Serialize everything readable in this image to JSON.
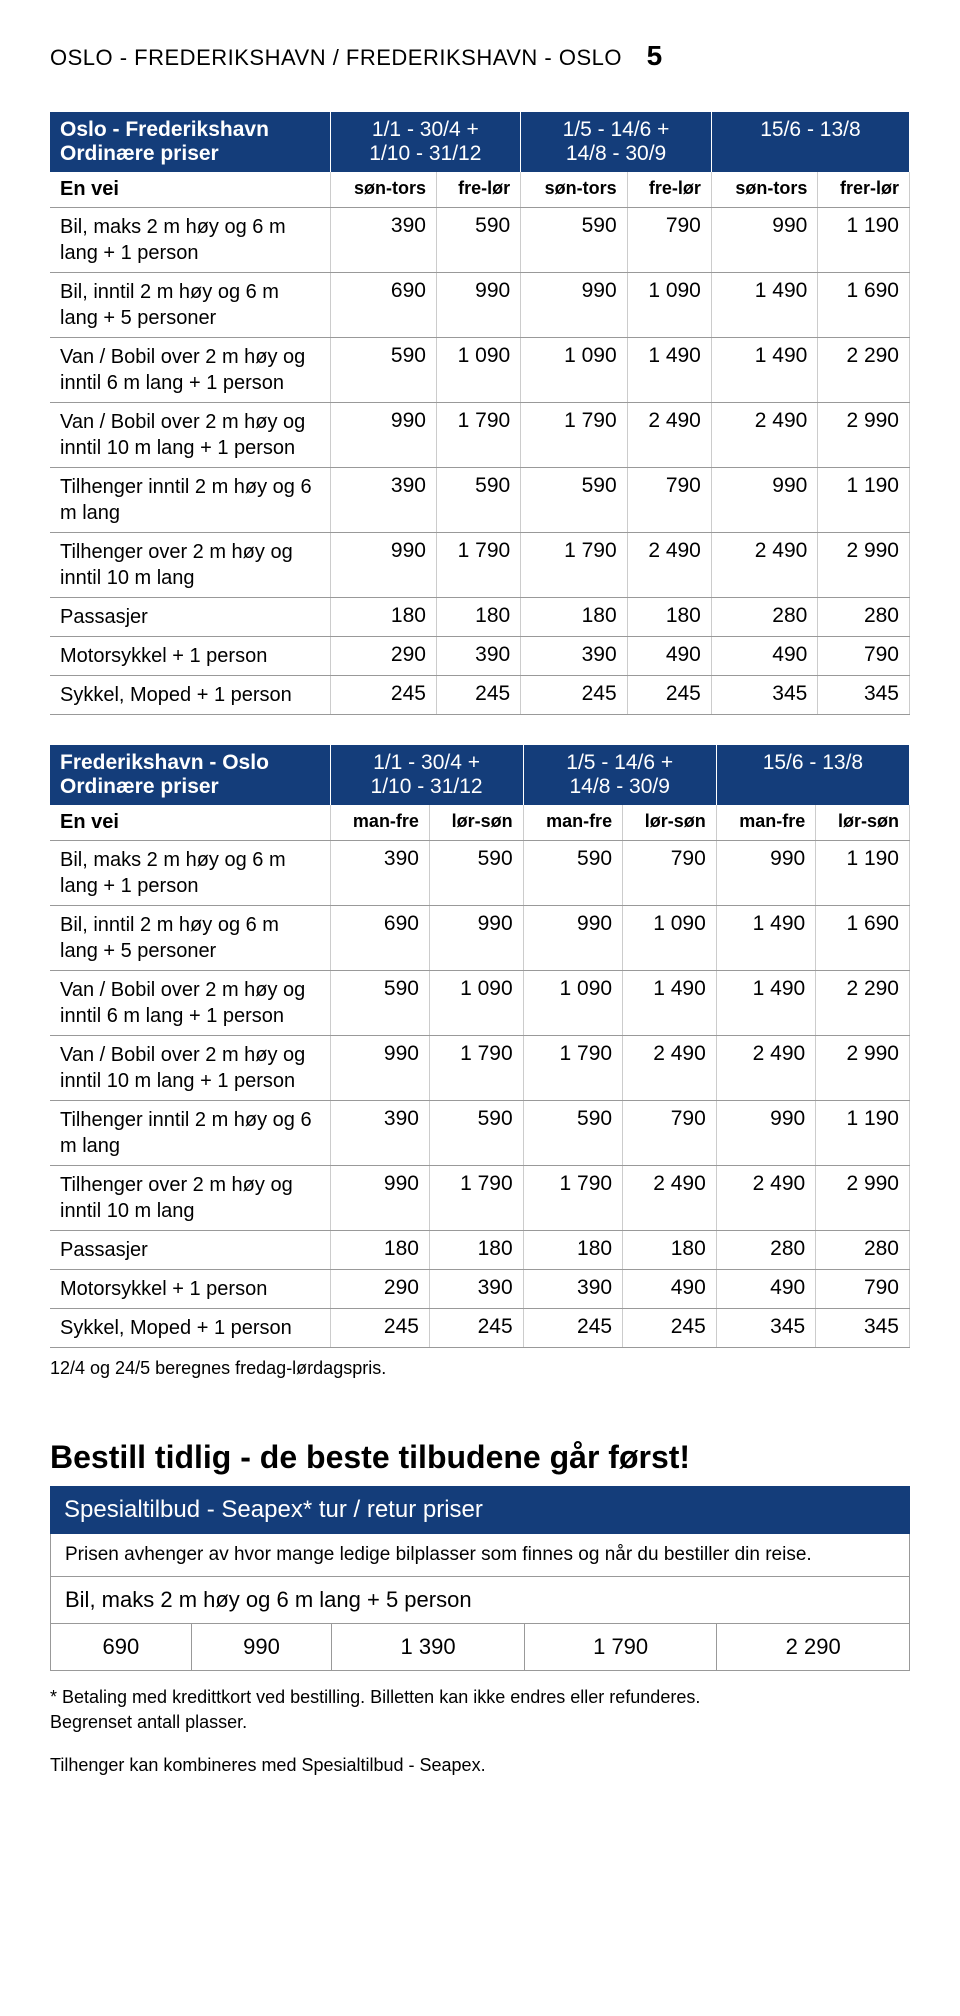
{
  "header": {
    "title": "OSLO - FREDERIKSHAVN / FREDERIKSHAVN - OSLO",
    "page_number": "5"
  },
  "table1": {
    "title": "Oslo - Frederikshavn",
    "subtitle": "Ordinære priser",
    "periods": [
      "1/1 - 30/4 +\n1/10 - 31/12",
      "1/5 - 14/6 +\n14/8 - 30/9",
      "15/6 - 13/8"
    ],
    "rowheader": "En vei",
    "subheads": [
      "søn-tors",
      "fre-lør",
      "søn-tors",
      "fre-lør",
      "søn-tors",
      "frer-lør"
    ],
    "rows": [
      {
        "label": "Bil, maks 2 m høy og 6 m lang + 1 person",
        "v": [
          "390",
          "590",
          "590",
          "790",
          "990",
          "1 190"
        ]
      },
      {
        "label": "Bil, inntil 2 m høy og 6 m lang + 5 personer",
        "v": [
          "690",
          "990",
          "990",
          "1 090",
          "1 490",
          "1 690"
        ]
      },
      {
        "label": "Van / Bobil over 2 m høy og inntil 6 m lang  + 1 person",
        "v": [
          "590",
          "1 090",
          "1 090",
          "1 490",
          "1 490",
          "2 290"
        ]
      },
      {
        "label": "Van / Bobil over 2 m høy og inntil 10 m lang  + 1 person",
        "v": [
          "990",
          "1 790",
          "1 790",
          "2 490",
          "2 490",
          "2 990"
        ]
      },
      {
        "label": "Tilhenger inntil 2 m høy og 6 m lang",
        "v": [
          "390",
          "590",
          "590",
          "790",
          "990",
          "1 190"
        ]
      },
      {
        "label": "Tilhenger over 2 m høy og inntil 10 m lang",
        "v": [
          "990",
          "1 790",
          "1 790",
          "2 490",
          "2 490",
          "2 990"
        ]
      },
      {
        "label": "Passasjer",
        "v": [
          "180",
          "180",
          "180",
          "180",
          "280",
          "280"
        ]
      },
      {
        "label": "Motorsykkel + 1 person",
        "v": [
          "290",
          "390",
          "390",
          "490",
          "490",
          "790"
        ]
      },
      {
        "label": "Sykkel, Moped + 1 person",
        "v": [
          "245",
          "245",
          "245",
          "245",
          "345",
          "345"
        ]
      }
    ]
  },
  "table2": {
    "title": "Frederikshavn - Oslo",
    "subtitle": "Ordinære priser",
    "periods": [
      "1/1 - 30/4 +\n1/10 - 31/12",
      "1/5 - 14/6 +\n14/8 - 30/9",
      "15/6 - 13/8"
    ],
    "rowheader": "En vei",
    "subheads": [
      "man-fre",
      "lør-søn",
      "man-fre",
      "lør-søn",
      "man-fre",
      "lør-søn"
    ],
    "rows": [
      {
        "label": "Bil, maks 2 m høy og 6 m lang + 1 person",
        "v": [
          "390",
          "590",
          "590",
          "790",
          "990",
          "1 190"
        ]
      },
      {
        "label": "Bil, inntil 2 m høy og 6 m lang + 5 personer",
        "v": [
          "690",
          "990",
          "990",
          "1 090",
          "1 490",
          "1 690"
        ]
      },
      {
        "label": "Van / Bobil over 2 m høy og inntil 6 m lang  + 1 person",
        "v": [
          "590",
          "1 090",
          "1 090",
          "1 490",
          "1 490",
          "2 290"
        ]
      },
      {
        "label": "Van / Bobil over 2 m høy og inntil 10 m lang  + 1 person",
        "v": [
          "990",
          "1 790",
          "1 790",
          "2 490",
          "2 490",
          "2 990"
        ]
      },
      {
        "label": "Tilhenger inntil 2 m høy og 6 m lang",
        "v": [
          "390",
          "590",
          "590",
          "790",
          "990",
          "1 190"
        ]
      },
      {
        "label": "Tilhenger over 2 m høy og inntil 10 m lang",
        "v": [
          "990",
          "1 790",
          "1 790",
          "2 490",
          "2 490",
          "2 990"
        ]
      },
      {
        "label": "Passasjer",
        "v": [
          "180",
          "180",
          "180",
          "180",
          "280",
          "280"
        ]
      },
      {
        "label": "Motorsykkel + 1 person",
        "v": [
          "290",
          "390",
          "390",
          "490",
          "490",
          "790"
        ]
      },
      {
        "label": "Sykkel, Moped + 1 person",
        "v": [
          "245",
          "245",
          "245",
          "245",
          "345",
          "345"
        ]
      }
    ],
    "footnote": "12/4 og 24/5 beregnes fredag-lørdagspris."
  },
  "headline": "Bestill tidlig - de beste tilbudene går først!",
  "special": {
    "bar": "Spesialtilbud - Seapex* tur / retur priser",
    "desc": "Prisen avhenger av hvor mange ledige bilplasser som finnes og når du bestiller din reise.",
    "label": "Bil, maks 2 m høy og 6 m lang + 5 person",
    "values": [
      "690",
      "990",
      "1 390",
      "1 790",
      "2 290"
    ]
  },
  "footnotes": {
    "a": "* Betaling med kredittkort ved bestilling. Billetten kan ikke endres eller refunderes.",
    "b": "Begrenset antall plasser.",
    "c": "Tilhenger kan kombineres med Spesialtilbud - Seapex."
  },
  "style": {
    "header_bg": "#143d7a",
    "header_fg": "#ffffff",
    "border_color": "#999999",
    "body_font": "Arial"
  }
}
